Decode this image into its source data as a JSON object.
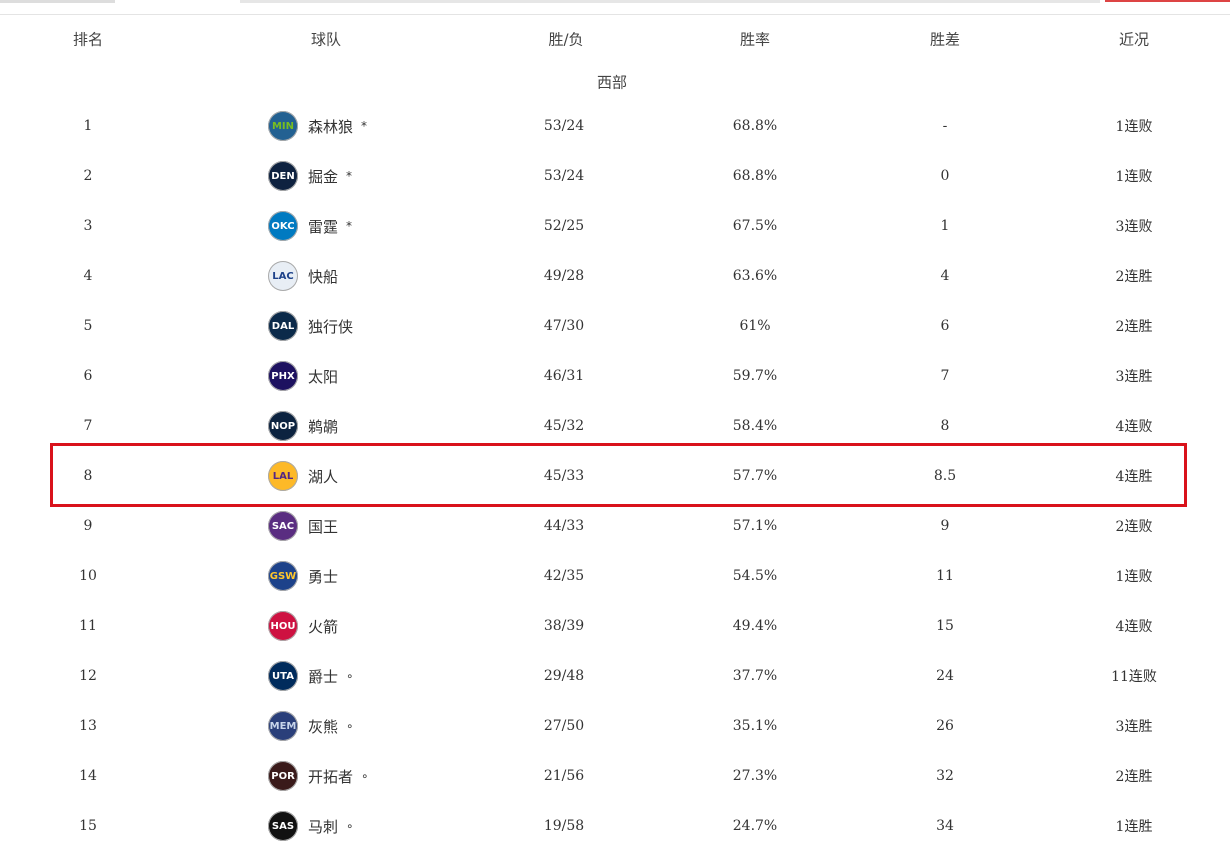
{
  "headers": {
    "rank": "排名",
    "team": "球队",
    "record": "胜/负",
    "pct": "胜率",
    "gb": "胜差",
    "streak": "近况"
  },
  "conference": "西部",
  "highlight_color": "#d9121b",
  "rows": [
    {
      "rank": "1",
      "abbr": "MIN",
      "name": "森林狼",
      "mark": "*",
      "record": "53/24",
      "pct": "68.8%",
      "gb": "-",
      "streak": "1连败",
      "bg": "#236192",
      "fg": "#78be20"
    },
    {
      "rank": "2",
      "abbr": "DEN",
      "name": "掘金",
      "mark": "*",
      "record": "53/24",
      "pct": "68.8%",
      "gb": "0",
      "streak": "1连败",
      "bg": "#0e2240",
      "fg": "#fff"
    },
    {
      "rank": "3",
      "abbr": "OKC",
      "name": "雷霆",
      "mark": "*",
      "record": "52/25",
      "pct": "67.5%",
      "gb": "1",
      "streak": "3连败",
      "bg": "#007ac1",
      "fg": "#fff"
    },
    {
      "rank": "4",
      "abbr": "LAC",
      "name": "快船",
      "mark": "",
      "record": "49/28",
      "pct": "63.6%",
      "gb": "4",
      "streak": "2连胜",
      "bg": "#e8eef5",
      "fg": "#1d428a"
    },
    {
      "rank": "5",
      "abbr": "DAL",
      "name": "独行侠",
      "mark": "",
      "record": "47/30",
      "pct": "61%",
      "gb": "6",
      "streak": "2连胜",
      "bg": "#0b2a4a",
      "fg": "#fff"
    },
    {
      "rank": "6",
      "abbr": "PHX",
      "name": "太阳",
      "mark": "",
      "record": "46/31",
      "pct": "59.7%",
      "gb": "7",
      "streak": "3连胜",
      "bg": "#1d1160",
      "fg": "#fff"
    },
    {
      "rank": "7",
      "abbr": "NOP",
      "name": "鹈鹕",
      "mark": "",
      "record": "45/32",
      "pct": "58.4%",
      "gb": "8",
      "streak": "4连败",
      "bg": "#0c2340",
      "fg": "#fff"
    },
    {
      "rank": "8",
      "abbr": "LAL",
      "name": "湖人",
      "mark": "",
      "record": "45/33",
      "pct": "57.7%",
      "gb": "8.5",
      "streak": "4连胜",
      "bg": "#fdb927",
      "fg": "#552583"
    },
    {
      "rank": "9",
      "abbr": "SAC",
      "name": "国王",
      "mark": "",
      "record": "44/33",
      "pct": "57.1%",
      "gb": "9",
      "streak": "2连败",
      "bg": "#5a2d81",
      "fg": "#fff"
    },
    {
      "rank": "10",
      "abbr": "GSW",
      "name": "勇士",
      "mark": "",
      "record": "42/35",
      "pct": "54.5%",
      "gb": "11",
      "streak": "1连败",
      "bg": "#1d428a",
      "fg": "#ffc72c"
    },
    {
      "rank": "11",
      "abbr": "HOU",
      "name": "火箭",
      "mark": "",
      "record": "38/39",
      "pct": "49.4%",
      "gb": "15",
      "streak": "4连败",
      "bg": "#ce1141",
      "fg": "#fff"
    },
    {
      "rank": "12",
      "abbr": "UTA",
      "name": "爵士",
      "mark": "∘",
      "record": "29/48",
      "pct": "37.7%",
      "gb": "24",
      "streak": "11连败",
      "bg": "#002b5c",
      "fg": "#fff"
    },
    {
      "rank": "13",
      "abbr": "MEM",
      "name": "灰熊",
      "mark": "∘",
      "record": "27/50",
      "pct": "35.1%",
      "gb": "26",
      "streak": "3连胜",
      "bg": "#2a3f7a",
      "fg": "#c8d5ea"
    },
    {
      "rank": "14",
      "abbr": "POR",
      "name": "开拓者",
      "mark": "∘",
      "record": "21/56",
      "pct": "27.3%",
      "gb": "32",
      "streak": "2连胜",
      "bg": "#3a1a1a",
      "fg": "#fff"
    },
    {
      "rank": "15",
      "abbr": "SAS",
      "name": "马刺",
      "mark": "∘",
      "record": "19/58",
      "pct": "24.7%",
      "gb": "34",
      "streak": "1连胜",
      "bg": "#111",
      "fg": "#fff"
    }
  ]
}
